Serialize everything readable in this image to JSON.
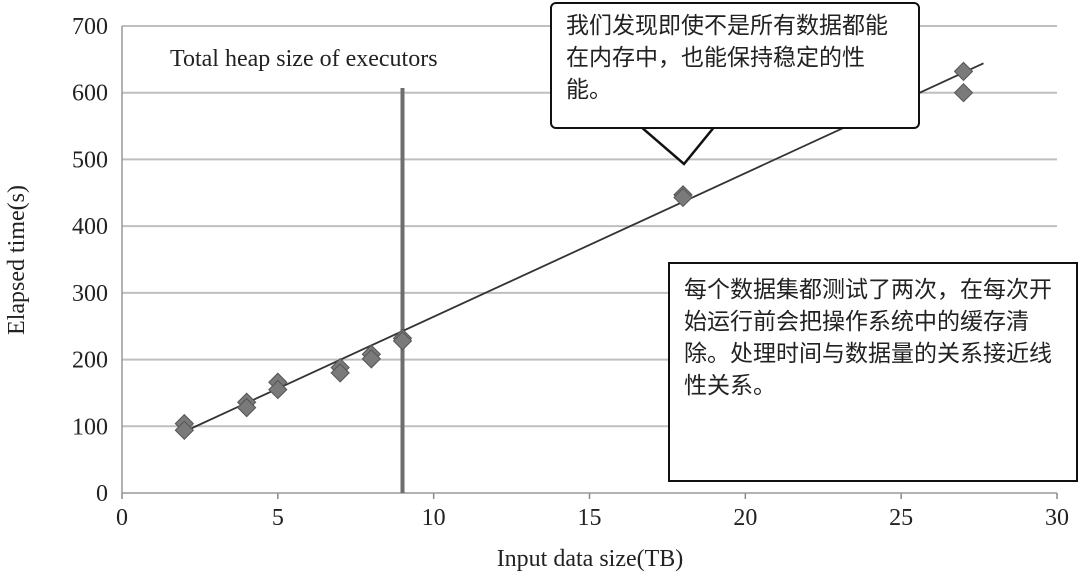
{
  "chart_data": {
    "type": "scatter",
    "title": "",
    "xlabel": "Input data size(TB)",
    "ylabel": "Elapsed time(s)",
    "xlim": [
      0,
      30
    ],
    "ylim": [
      0,
      700
    ],
    "xticks": [
      0,
      5,
      10,
      15,
      20,
      25,
      30
    ],
    "yticks": [
      0,
      100,
      200,
      300,
      400,
      500,
      600,
      700
    ],
    "grid": "horizontal",
    "series": [
      {
        "name": "Elapsed time",
        "points": [
          [
            2,
            104
          ],
          [
            2,
            94
          ],
          [
            4,
            136
          ],
          [
            4,
            128
          ],
          [
            5,
            166
          ],
          [
            5,
            155
          ],
          [
            7,
            188
          ],
          [
            7,
            180
          ],
          [
            8,
            208
          ],
          [
            8,
            201
          ],
          [
            9,
            232
          ],
          [
            9,
            228
          ],
          [
            18,
            447
          ],
          [
            18,
            443
          ],
          [
            27,
            632
          ],
          [
            27,
            600
          ]
        ]
      }
    ],
    "trendline": [
      [
        2,
        92
      ],
      [
        27,
        622
      ]
    ],
    "vertical_marker": {
      "x": 9,
      "label": "Total heap size of executors"
    },
    "annotations": [
      "我们发现即使不是所有数据都能在内存中，也能保持稳定的性能。",
      "每个数据集都测试了两次，在每次开始运行前会把操作系统中的缓存清除。处理时间与数据量的关系接近线性关系。"
    ],
    "colors": {
      "marker": "#7a7a7a",
      "line": "#333333",
      "grid": "#bfbfbf",
      "vline": "#6e6e6e"
    }
  }
}
